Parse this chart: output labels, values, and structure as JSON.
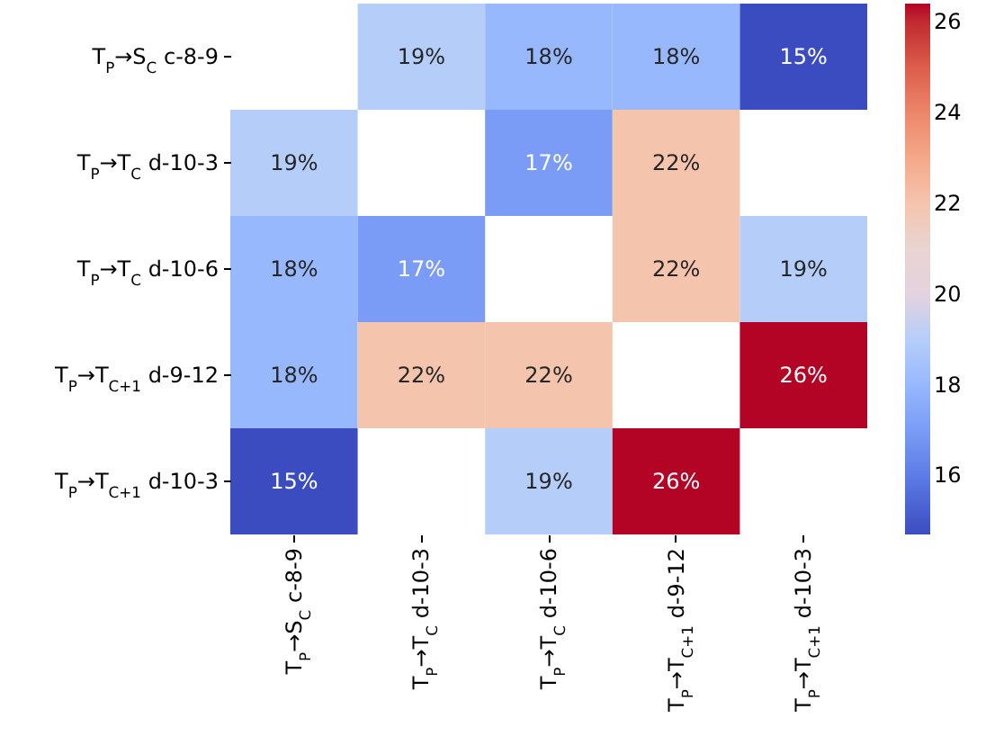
{
  "chart_data": {
    "type": "heatmap",
    "categories": [
      "T$_{P}$→S$_{C}$ c-8-9",
      "T$_{P}$→T$_{C}$ d-10-3",
      "T$_{P}$→T$_{C}$ d-10-6",
      "T$_{P}$→T$_{C+1}$ d-9-12",
      "T$_{P}$→T$_{C+1}$ d-10-3"
    ],
    "y_categories": [
      "T$_{P}$→S$_{C}$ c-8-9",
      "T$_{P}$→T$_{C}$ d-10-3",
      "T$_{P}$→T$_{C}$ d-10-6",
      "T$_{P}$→T$_{C+1}$ d-9-12",
      "T$_{P}$→T$_{C+1}$ d-10-3"
    ],
    "cells": [
      [
        null,
        19,
        18,
        18,
        14.7
      ],
      [
        19,
        null,
        17,
        22,
        null
      ],
      [
        18,
        17,
        null,
        22,
        19
      ],
      [
        18,
        22,
        22,
        null,
        26.4
      ],
      [
        14.7,
        null,
        19,
        26.4,
        null
      ]
    ],
    "cell_labels": [
      [
        null,
        "19%",
        "18%",
        "18%",
        "15%"
      ],
      [
        "19%",
        null,
        "17%",
        "22%",
        null
      ],
      [
        "18%",
        "17%",
        null,
        "22%",
        "19%"
      ],
      [
        "18%",
        "22%",
        "22%",
        null,
        "26%"
      ],
      [
        "15%",
        null,
        "19%",
        "26%",
        null
      ]
    ],
    "clim": [
      14.7,
      26.4
    ],
    "cticks": [
      16,
      18,
      20,
      22,
      24,
      26
    ]
  }
}
